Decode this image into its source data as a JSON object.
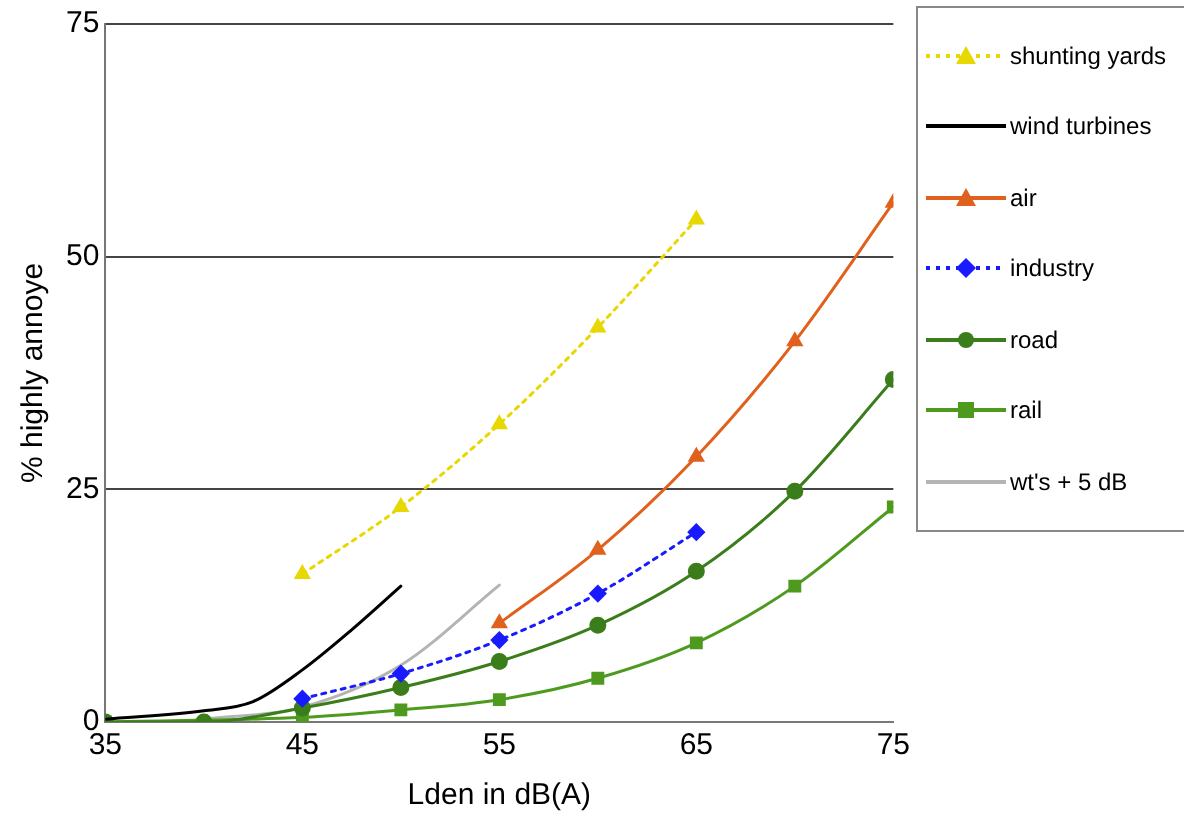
{
  "chart_data": {
    "type": "line",
    "xlabel": "Lden in dB(A)",
    "ylabel": "% highly annoye",
    "xlim": [
      35,
      75
    ],
    "xticks": [
      35,
      45,
      55,
      65,
      75
    ],
    "ylim": [
      0,
      75
    ],
    "yticks": [
      0,
      25,
      50,
      75
    ],
    "grid": "y",
    "legend": "right",
    "series": [
      {
        "name": "shunting yards",
        "color": "#e6d800",
        "x": [
          45,
          50,
          55,
          60,
          65
        ],
        "values": [
          15.9,
          23.1,
          32,
          42.4,
          54
        ],
        "marker": "triangle",
        "line_style": "dotted"
      },
      {
        "name": "wind turbines",
        "color": "#000000",
        "x": [
          35,
          40,
          42.5,
          45,
          47.5,
          50
        ],
        "values": [
          0.3,
          1.2,
          2.2,
          5.6,
          9.9,
          14.6
        ],
        "marker": "none",
        "line_style": "solid"
      },
      {
        "name": "air",
        "color": "#e0601e",
        "x": [
          55,
          60,
          65,
          70,
          75
        ],
        "values": [
          10.6,
          18.5,
          28.5,
          40.9,
          55.8
        ],
        "marker": "triangle",
        "line_style": "solid"
      },
      {
        "name": "industry",
        "color": "#1a1aff",
        "x": [
          45,
          50,
          55,
          60,
          65
        ],
        "values": [
          2.5,
          5.2,
          8.8,
          13.8,
          20.4
        ],
        "marker": "diamond",
        "line_style": "dotted"
      },
      {
        "name": "road",
        "color": "#3a7d1a",
        "x": [
          35,
          40,
          45,
          50,
          55,
          60,
          65,
          70,
          75
        ],
        "values": [
          0,
          0,
          1.5,
          3.7,
          6.5,
          10.4,
          16.2,
          24.8,
          36.8
        ],
        "marker": "circle",
        "line_style": "solid"
      },
      {
        "name": "rail",
        "color": "#4e9a1e",
        "x": [
          35,
          45,
          50,
          55,
          60,
          65,
          70,
          75
        ],
        "values": [
          0,
          0.5,
          1.3,
          2.4,
          4.7,
          8.5,
          14.6,
          23.1
        ],
        "marker": "square",
        "line_style": "solid"
      },
      {
        "name": "wt's +  5 dB",
        "color": "#b4b4b4",
        "x": [
          40,
          45,
          50,
          55
        ],
        "values": [
          0.3,
          1.6,
          6.1,
          14.7
        ],
        "marker": "none",
        "line_style": "solid"
      }
    ]
  }
}
